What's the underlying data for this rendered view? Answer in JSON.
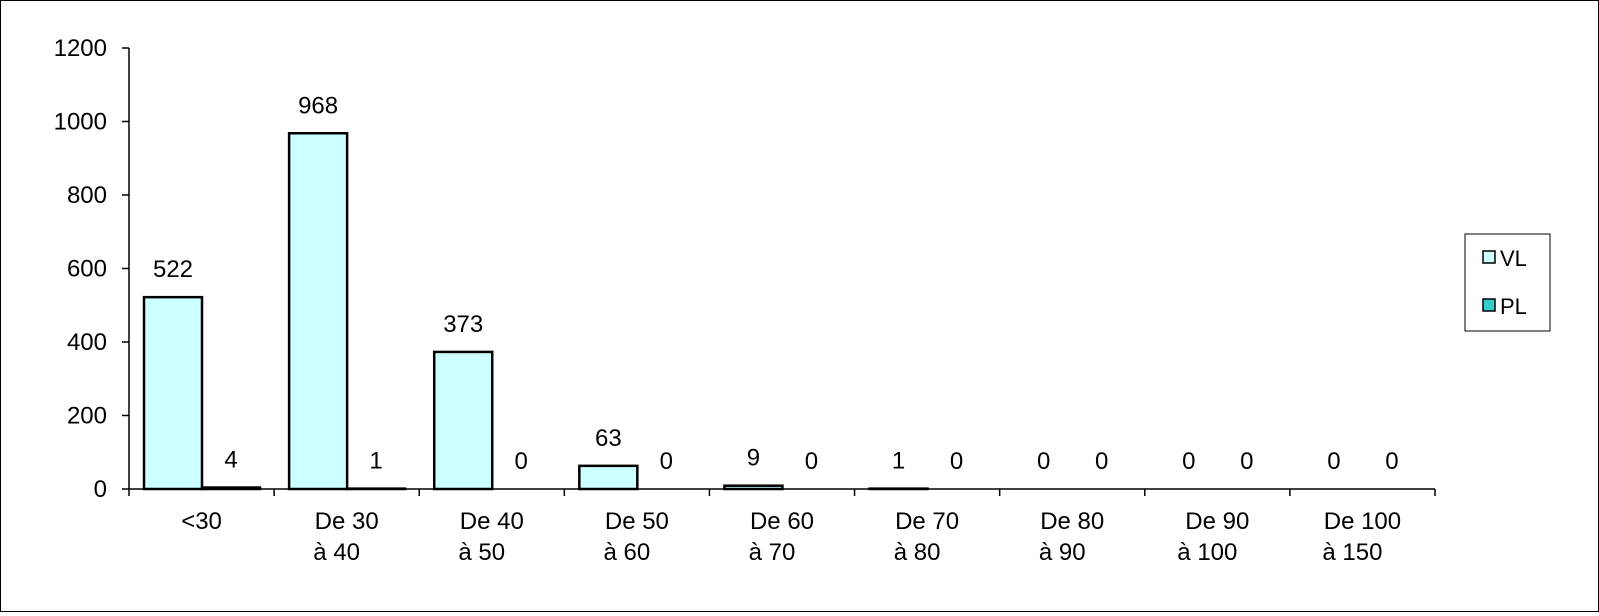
{
  "chart_data": {
    "type": "bar",
    "categories": [
      [
        "<30"
      ],
      [
        "De 30",
        "à 40"
      ],
      [
        "De 40",
        "à 50"
      ],
      [
        "De 50",
        "à 60"
      ],
      [
        "De 60",
        "à 70"
      ],
      [
        "De 70",
        "à 80"
      ],
      [
        "De 80",
        "à 90"
      ],
      [
        "De 90",
        "à 100"
      ],
      [
        "De 100",
        "à 150"
      ]
    ],
    "series": [
      {
        "name": "VL",
        "values": [
          522,
          968,
          373,
          63,
          9,
          1,
          0,
          0,
          0
        ],
        "color": "#ccffff"
      },
      {
        "name": "PL",
        "values": [
          4,
          1,
          0,
          0,
          0,
          0,
          0,
          0,
          0
        ],
        "color": "#33cccc"
      }
    ],
    "title": "",
    "xlabel": "",
    "ylabel": "",
    "ylim": [
      0,
      1200
    ],
    "yticks": [
      0,
      200,
      400,
      600,
      800,
      1000,
      1200
    ],
    "grid": false,
    "legend_position": "right"
  }
}
